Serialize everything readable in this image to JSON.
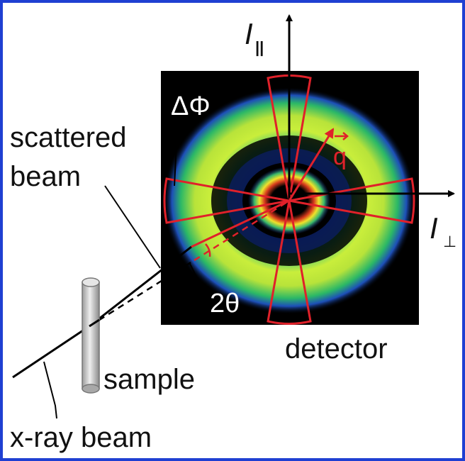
{
  "labels": {
    "i_parallel": "I",
    "i_parallel_sub": "||",
    "i_perp": "I",
    "i_perp_sub": "⊥",
    "delta_phi": "ΔΦ",
    "q_vec": "q",
    "scattered_line1": "scattered",
    "scattered_line2": "beam",
    "two_theta": "2θ",
    "detector": "detector",
    "sample": "sample",
    "xray_beam": "x-ray beam"
  },
  "colors": {
    "frame": "#1f3fd2",
    "detector_background": "#000000",
    "ring_outer": "#c9ee3b",
    "ring_mid": "#2bb866",
    "overlay_red": "#e0212a",
    "beam": "#000000",
    "sample_cylinder": "#d6d6d6"
  }
}
